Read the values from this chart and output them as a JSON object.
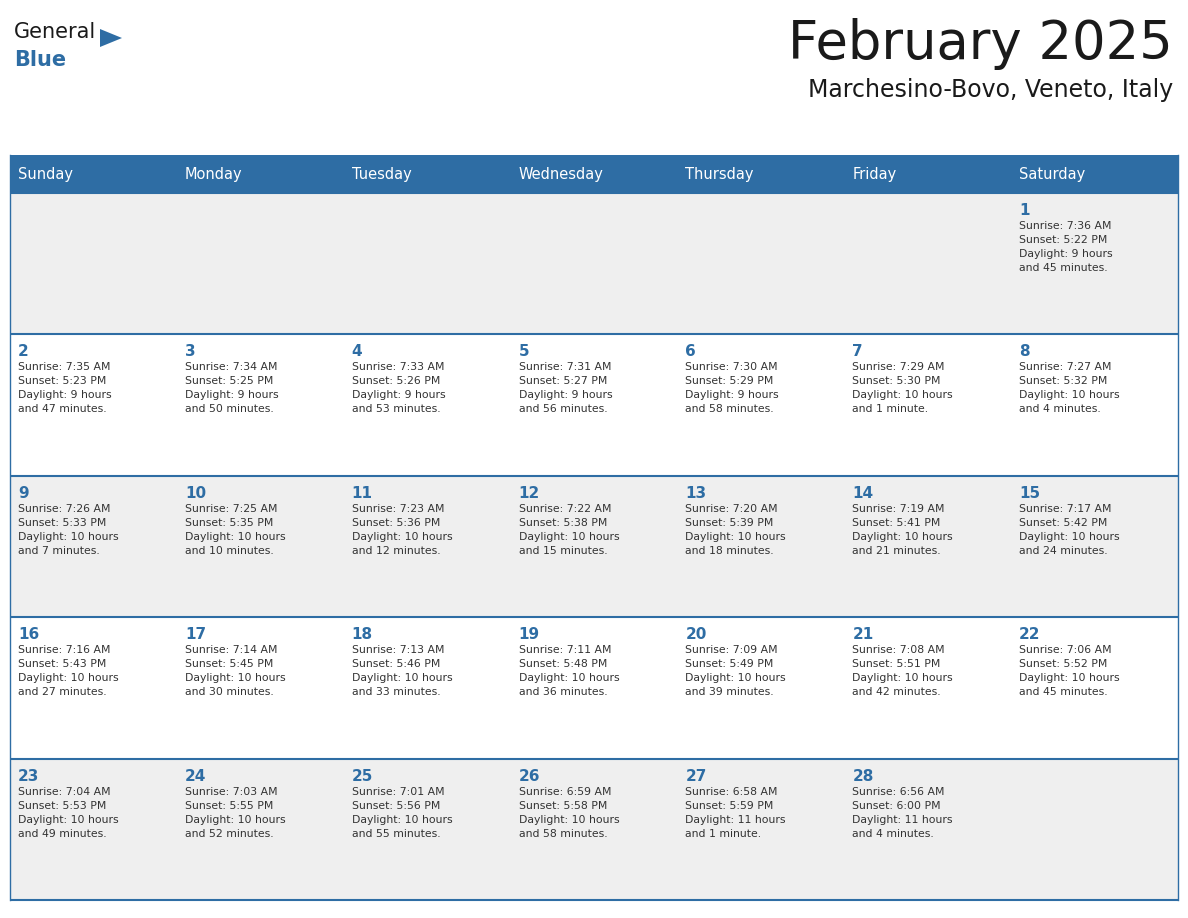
{
  "title": "February 2025",
  "subtitle": "Marchesino-Bovo, Veneto, Italy",
  "header_bg_color": "#2E6DA4",
  "header_text_color": "#FFFFFF",
  "cell_bg_color_odd": "#EFEFEF",
  "cell_bg_color_even": "#FFFFFF",
  "border_color": "#2E6DA4",
  "day_names": [
    "Sunday",
    "Monday",
    "Tuesday",
    "Wednesday",
    "Thursday",
    "Friday",
    "Saturday"
  ],
  "title_color": "#1a1a1a",
  "subtitle_color": "#1a1a1a",
  "day_num_color": "#2E6DA4",
  "cell_text_color": "#333333",
  "logo_general_color": "#1a1a1a",
  "logo_blue_color": "#2E6DA4",
  "weeks": [
    [
      {
        "day": null,
        "text": ""
      },
      {
        "day": null,
        "text": ""
      },
      {
        "day": null,
        "text": ""
      },
      {
        "day": null,
        "text": ""
      },
      {
        "day": null,
        "text": ""
      },
      {
        "day": null,
        "text": ""
      },
      {
        "day": 1,
        "text": "Sunrise: 7:36 AM\nSunset: 5:22 PM\nDaylight: 9 hours\nand 45 minutes."
      }
    ],
    [
      {
        "day": 2,
        "text": "Sunrise: 7:35 AM\nSunset: 5:23 PM\nDaylight: 9 hours\nand 47 minutes."
      },
      {
        "day": 3,
        "text": "Sunrise: 7:34 AM\nSunset: 5:25 PM\nDaylight: 9 hours\nand 50 minutes."
      },
      {
        "day": 4,
        "text": "Sunrise: 7:33 AM\nSunset: 5:26 PM\nDaylight: 9 hours\nand 53 minutes."
      },
      {
        "day": 5,
        "text": "Sunrise: 7:31 AM\nSunset: 5:27 PM\nDaylight: 9 hours\nand 56 minutes."
      },
      {
        "day": 6,
        "text": "Sunrise: 7:30 AM\nSunset: 5:29 PM\nDaylight: 9 hours\nand 58 minutes."
      },
      {
        "day": 7,
        "text": "Sunrise: 7:29 AM\nSunset: 5:30 PM\nDaylight: 10 hours\nand 1 minute."
      },
      {
        "day": 8,
        "text": "Sunrise: 7:27 AM\nSunset: 5:32 PM\nDaylight: 10 hours\nand 4 minutes."
      }
    ],
    [
      {
        "day": 9,
        "text": "Sunrise: 7:26 AM\nSunset: 5:33 PM\nDaylight: 10 hours\nand 7 minutes."
      },
      {
        "day": 10,
        "text": "Sunrise: 7:25 AM\nSunset: 5:35 PM\nDaylight: 10 hours\nand 10 minutes."
      },
      {
        "day": 11,
        "text": "Sunrise: 7:23 AM\nSunset: 5:36 PM\nDaylight: 10 hours\nand 12 minutes."
      },
      {
        "day": 12,
        "text": "Sunrise: 7:22 AM\nSunset: 5:38 PM\nDaylight: 10 hours\nand 15 minutes."
      },
      {
        "day": 13,
        "text": "Sunrise: 7:20 AM\nSunset: 5:39 PM\nDaylight: 10 hours\nand 18 minutes."
      },
      {
        "day": 14,
        "text": "Sunrise: 7:19 AM\nSunset: 5:41 PM\nDaylight: 10 hours\nand 21 minutes."
      },
      {
        "day": 15,
        "text": "Sunrise: 7:17 AM\nSunset: 5:42 PM\nDaylight: 10 hours\nand 24 minutes."
      }
    ],
    [
      {
        "day": 16,
        "text": "Sunrise: 7:16 AM\nSunset: 5:43 PM\nDaylight: 10 hours\nand 27 minutes."
      },
      {
        "day": 17,
        "text": "Sunrise: 7:14 AM\nSunset: 5:45 PM\nDaylight: 10 hours\nand 30 minutes."
      },
      {
        "day": 18,
        "text": "Sunrise: 7:13 AM\nSunset: 5:46 PM\nDaylight: 10 hours\nand 33 minutes."
      },
      {
        "day": 19,
        "text": "Sunrise: 7:11 AM\nSunset: 5:48 PM\nDaylight: 10 hours\nand 36 minutes."
      },
      {
        "day": 20,
        "text": "Sunrise: 7:09 AM\nSunset: 5:49 PM\nDaylight: 10 hours\nand 39 minutes."
      },
      {
        "day": 21,
        "text": "Sunrise: 7:08 AM\nSunset: 5:51 PM\nDaylight: 10 hours\nand 42 minutes."
      },
      {
        "day": 22,
        "text": "Sunrise: 7:06 AM\nSunset: 5:52 PM\nDaylight: 10 hours\nand 45 minutes."
      }
    ],
    [
      {
        "day": 23,
        "text": "Sunrise: 7:04 AM\nSunset: 5:53 PM\nDaylight: 10 hours\nand 49 minutes."
      },
      {
        "day": 24,
        "text": "Sunrise: 7:03 AM\nSunset: 5:55 PM\nDaylight: 10 hours\nand 52 minutes."
      },
      {
        "day": 25,
        "text": "Sunrise: 7:01 AM\nSunset: 5:56 PM\nDaylight: 10 hours\nand 55 minutes."
      },
      {
        "day": 26,
        "text": "Sunrise: 6:59 AM\nSunset: 5:58 PM\nDaylight: 10 hours\nand 58 minutes."
      },
      {
        "day": 27,
        "text": "Sunrise: 6:58 AM\nSunset: 5:59 PM\nDaylight: 11 hours\nand 1 minute."
      },
      {
        "day": 28,
        "text": "Sunrise: 6:56 AM\nSunset: 6:00 PM\nDaylight: 11 hours\nand 4 minutes."
      },
      {
        "day": null,
        "text": ""
      }
    ]
  ],
  "fig_width": 11.88,
  "fig_height": 9.18,
  "fig_dpi": 100
}
